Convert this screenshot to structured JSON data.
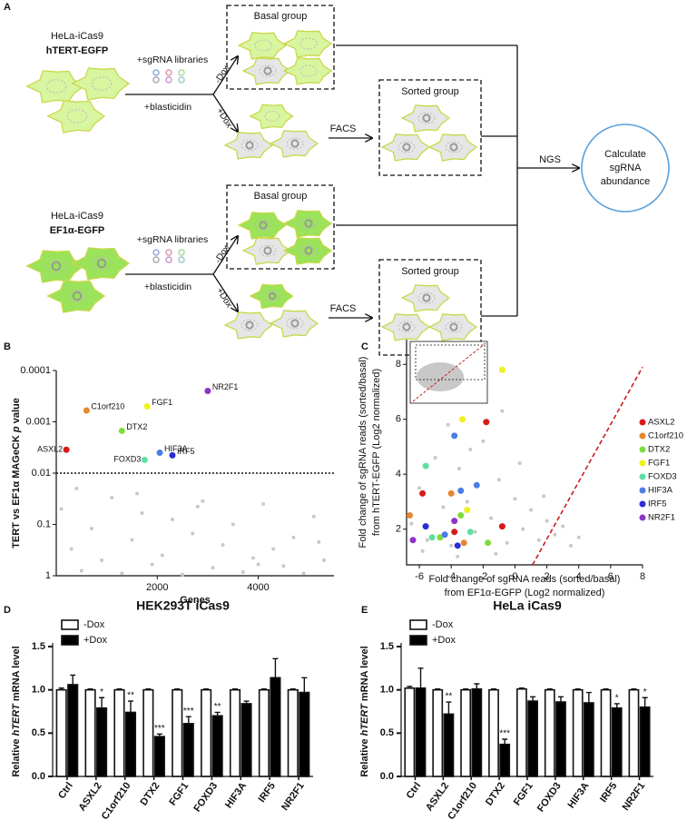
{
  "panel_labels": [
    "A",
    "B",
    "C",
    "D",
    "E"
  ],
  "diagram": {
    "rows": [
      {
        "cell_line": "HeLa-iCas9",
        "reporter": "hTERT-EGFP",
        "sgrna": "+sgRNA libraries",
        "blasticidin": "+blasticidin",
        "minus_dox": "-Dox",
        "plus_dox": "+Dox",
        "basal": "Basal group",
        "sorted": "Sorted group",
        "facs": "FACS"
      },
      {
        "cell_line": "HeLa-iCas9",
        "reporter": "EF1α-EGFP",
        "sgrna": "+sgRNA libraries",
        "blasticidin": "+blasticidin",
        "minus_dox": "-Dox",
        "plus_dox": "+Dox",
        "basal": "Basal group",
        "sorted": "Sorted group",
        "facs": "FACS"
      }
    ],
    "ngs": "NGS",
    "result": [
      "Calculate",
      "sgRNA",
      "abundance"
    ]
  },
  "chart_data": [
    {
      "type": "scatter",
      "y_label": [
        "TERT vs EF1α MAGeCK ",
        "p",
        " value"
      ],
      "x_label": "Genes",
      "xlim": [
        0,
        5500
      ],
      "xticks": [
        2000,
        4000
      ],
      "ylim": [
        0.0001,
        1
      ],
      "yticks": [
        0.0001,
        0.001,
        0.01,
        0.1,
        1
      ],
      "log_scale": true,
      "inverted": true,
      "threshold": 0.01,
      "background": {
        "x": [
          100,
          300,
          500,
          700,
          900,
          1100,
          1300,
          1500,
          1700,
          1900,
          2100,
          2300,
          2500,
          2700,
          2900,
          3100,
          3300,
          3500,
          3700,
          3900,
          4100,
          4300,
          4500,
          4700,
          4900,
          5100,
          5300,
          400,
          1600,
          2800,
          4000,
          5200
        ],
        "y": [
          0.05,
          0.3,
          0.8,
          0.12,
          0.5,
          0.03,
          0.9,
          0.2,
          0.06,
          0.6,
          0.4,
          0.08,
          0.95,
          0.15,
          0.035,
          0.7,
          0.25,
          0.1,
          0.85,
          0.45,
          0.04,
          0.3,
          0.65,
          0.18,
          0.9,
          0.07,
          0.5,
          0.02,
          0.025,
          0.045,
          0.6,
          0.22
        ]
      },
      "points": [
        {
          "name": "ASXL2",
          "color": "#d7191c",
          "x": 200,
          "y": 0.0035
        },
        {
          "name": "C1orf210",
          "color": "#e6862e",
          "x": 600,
          "y": 0.0006
        },
        {
          "name": "DTX2",
          "color": "#7ddc3c",
          "x": 1300,
          "y": 0.0015
        },
        {
          "name": "FGF1",
          "color": "#f0f020",
          "x": 1800,
          "y": 0.0005
        },
        {
          "name": "FOXD3",
          "color": "#5fe0a0",
          "x": 1750,
          "y": 0.0055
        },
        {
          "name": "HIF3A",
          "color": "#4a7de6",
          "x": 2050,
          "y": 0.004
        },
        {
          "name": "IRF5",
          "color": "#2b2bd8",
          "x": 2300,
          "y": 0.0045
        },
        {
          "name": "NR2F1",
          "color": "#8e35c8",
          "x": 3000,
          "y": 0.00025
        }
      ]
    },
    {
      "type": "scatter",
      "y_label": [
        "Fold change of sgRNA reads (sorted/basal)",
        "from hTERT-EGFP (Log2 normalized)"
      ],
      "x_label": [
        "Fold change of sgRNA reads (sorted/basal)",
        "from EF1α-EGFP (Log2 normalized)"
      ],
      "xlim": [
        -6.8,
        8
      ],
      "xticks": [
        -6,
        -4,
        -2,
        0,
        2,
        4,
        6,
        8
      ],
      "ylim": [
        0.7,
        8.9
      ],
      "yticks": [
        2,
        4,
        6,
        8
      ],
      "diagonal": {
        "x": [
          1.1,
          8
        ],
        "y": [
          0.7,
          7.9
        ]
      },
      "background": {
        "x": [
          -6.5,
          -6,
          -5.5,
          -5,
          -4.5,
          -4,
          -3.5,
          -3,
          -2.5,
          -2,
          -1.5,
          -1,
          -0.5,
          0,
          0.5,
          1,
          1.5,
          2,
          2.5,
          3,
          3.5,
          4,
          -5.8,
          -4.2,
          -2.8,
          -1.2,
          0.3,
          1.8,
          -3.6,
          -0.8
        ],
        "y": [
          2.2,
          3.5,
          1.6,
          4.6,
          2.8,
          1.4,
          4.2,
          3.0,
          1.9,
          5.2,
          2.4,
          3.8,
          1.5,
          3.1,
          2.0,
          2.7,
          1.6,
          2.3,
          1.8,
          2.1,
          1.4,
          1.7,
          1.2,
          5.8,
          4.9,
          1.1,
          4.4,
          3.2,
          1.0,
          6.3
        ]
      },
      "series": [
        {
          "name": "ASXL2",
          "color": "#d7191c",
          "x": [
            -5.8,
            -3.8,
            -1.8,
            -0.8
          ],
          "y": [
            3.3,
            1.9,
            5.9,
            2.1
          ]
        },
        {
          "name": "C1orf210",
          "color": "#e6862e",
          "x": [
            -6.6,
            -4.0,
            -3.2
          ],
          "y": [
            2.5,
            3.3,
            1.5
          ]
        },
        {
          "name": "DTX2",
          "color": "#7ddc3c",
          "x": [
            -4.7,
            -3.4,
            -1.7
          ],
          "y": [
            1.7,
            2.5,
            1.5
          ]
        },
        {
          "name": "FGF1",
          "color": "#f0f020",
          "x": [
            -0.8,
            -3.3,
            -3.0
          ],
          "y": [
            7.8,
            6.0,
            2.7
          ]
        },
        {
          "name": "FOXD3",
          "color": "#5fe0a0",
          "x": [
            -5.6,
            -5.2,
            -2.8
          ],
          "y": [
            4.3,
            1.7,
            1.9
          ]
        },
        {
          "name": "HIF3A",
          "color": "#4a7de6",
          "x": [
            -3.8,
            -3.4,
            -2.4,
            -4.4
          ],
          "y": [
            5.4,
            3.4,
            3.6,
            1.8
          ]
        },
        {
          "name": "IRF5",
          "color": "#2b2bd8",
          "x": [
            -5.6,
            -3.6
          ],
          "y": [
            2.1,
            1.4
          ]
        },
        {
          "name": "NR2F1",
          "color": "#8e35c8",
          "x": [
            -6.4,
            -3.8
          ],
          "y": [
            1.6,
            2.3
          ]
        }
      ]
    },
    {
      "type": "bar",
      "title": "HEK293T iCas9",
      "y_label": [
        "Relative ",
        "hTERT",
        " mRNA level"
      ],
      "categories": [
        "Ctrl",
        "ASXL2",
        "C1orf210",
        "DTX2",
        "FGF1",
        "FOXD3",
        "HIF3A",
        "IRF5",
        "NR2F1"
      ],
      "ylim": [
        0,
        1.5
      ],
      "yticks": [
        {
          "value": 0,
          "label": "0.0"
        },
        0.5,
        {
          "value": 1,
          "label": "1.0"
        },
        1.5
      ],
      "series": [
        {
          "name": "-Dox",
          "color": "#ffffff",
          "values": [
            1.0,
            1.0,
            1.0,
            1.0,
            1.0,
            1.0,
            1.0,
            1.0,
            1.0
          ],
          "errors": [
            0.02,
            0.01,
            0.01,
            0.01,
            0.01,
            0.01,
            0.01,
            0.01,
            0.01
          ]
        },
        {
          "name": "+Dox",
          "color": "#000000",
          "values": [
            1.06,
            0.79,
            0.74,
            0.46,
            0.61,
            0.7,
            0.84,
            1.14,
            0.97
          ],
          "errors": [
            0.11,
            0.12,
            0.13,
            0.03,
            0.08,
            0.04,
            0.03,
            0.22,
            0.17
          ]
        }
      ],
      "stars": [
        null,
        "*",
        "**",
        "***",
        "***",
        "**",
        null,
        null,
        null
      ]
    },
    {
      "type": "bar",
      "title": "HeLa iCas9",
      "y_label": [
        "Relative ",
        "hTERT",
        " mRNA level"
      ],
      "categories": [
        "Ctrl",
        "ASXL2",
        "C1orf210",
        "DTX2",
        "FGF1",
        "FOXD3",
        "HIF3A",
        "IRF5",
        "NR2F1"
      ],
      "ylim": [
        0,
        1.5
      ],
      "yticks": [
        {
          "value": 0,
          "label": "0.0"
        },
        0.5,
        {
          "value": 1,
          "label": "1.0"
        },
        1.5
      ],
      "series": [
        {
          "name": "-Dox",
          "color": "#ffffff",
          "values": [
            1.02,
            1.0,
            1.0,
            1.0,
            1.01,
            1.0,
            1.0,
            1.0,
            1.0
          ],
          "errors": [
            0.02,
            0.01,
            0.01,
            0.01,
            0.01,
            0.01,
            0.01,
            0.01,
            0.01
          ]
        },
        {
          "name": "+Dox",
          "color": "#000000",
          "values": [
            1.02,
            0.72,
            1.01,
            0.37,
            0.87,
            0.86,
            0.85,
            0.79,
            0.8
          ],
          "errors": [
            0.23,
            0.14,
            0.06,
            0.06,
            0.05,
            0.06,
            0.12,
            0.05,
            0.11
          ]
        }
      ],
      "stars": [
        null,
        "**",
        null,
        "***",
        null,
        null,
        null,
        "*",
        "*"
      ]
    }
  ]
}
